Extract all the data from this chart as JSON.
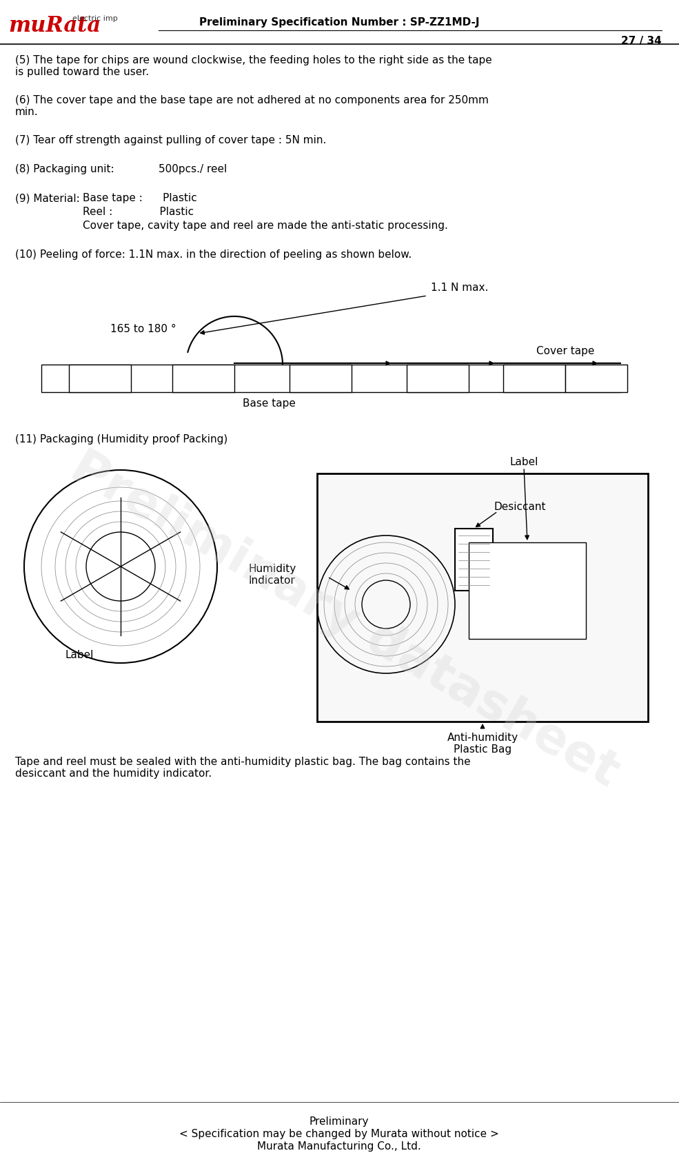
{
  "title_line": "Preliminary Specification Number : SP-ZZ1MD-J",
  "page": "27 / 34",
  "footer_line1": "Preliminary",
  "footer_line2": "< Specification may be changed by Murata without notice >",
  "footer_line3": "Murata Manufacturing Co., Ltd.",
  "text5": "(5) The tape for chips are wound clockwise, the feeding holes to the right side as the tape\nis pulled toward the user.",
  "text6": "(6) The cover tape and the base tape are not adhered at no components area for 250mm\nmin.",
  "text7": "(7) Tear off strength against pulling of cover tape : 5N min.",
  "text8_label": "(8) Packaging unit:",
  "text8_value": "500pcs./ reel",
  "text9_label": "(9) Material:",
  "text9_items": [
    "Base tape :      Plastic",
    "Reel :              Plastic",
    "Cover tape, cavity tape and reel are made the anti-static processing."
  ],
  "text10": "(10) Peeling of force: 1.1N max. in the direction of peeling as shown below.",
  "text11": "(11) Packaging (Humidity proof Packing)",
  "text11b": "Tape and reel must be sealed with the anti-humidity plastic bag. The bag contains the\ndesiccant and the humidity indicator.",
  "label_angle": "165 to 180 °",
  "label_force": "1.1 N max.",
  "label_cover": "Cover tape",
  "label_base": "Base tape",
  "label_desiccant": "Desiccant",
  "label_humidity": "Humidity\nIndicator",
  "label_label1": "Label",
  "label_label2": "Label",
  "label_antihumidity": "Anti-humidity\nPlastic Bag",
  "watermark": "Preliminary datasheet",
  "bg_color": "#ffffff",
  "text_color": "#000000",
  "font_size": 11,
  "header_font_size": 11
}
